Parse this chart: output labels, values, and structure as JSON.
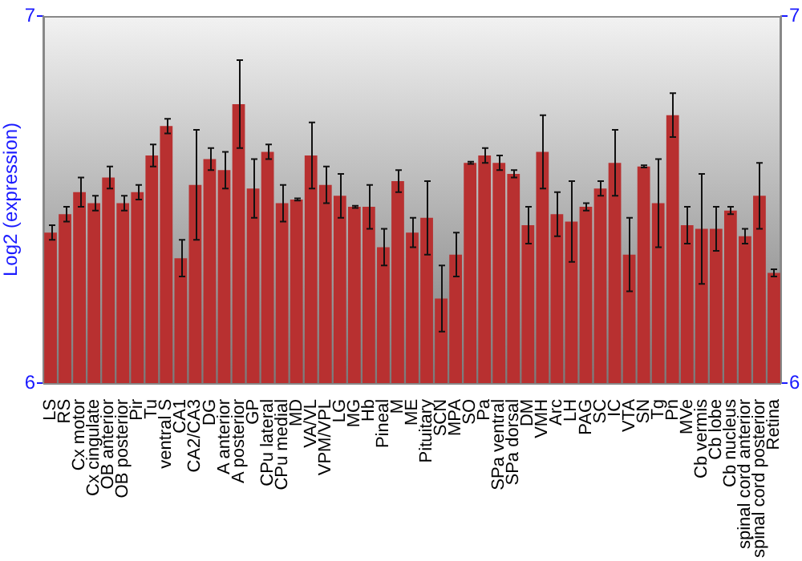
{
  "chart_data": {
    "type": "bar",
    "ylabel": "Log2 (expression)",
    "categories": [
      "LS",
      "RS",
      "Cx motor",
      "Cx cingulate",
      "OB anterior",
      "OB posterior",
      "Pir",
      "Tu",
      "ventral S",
      "CA1",
      "CA2/CA3",
      "DG",
      "A anterior",
      "A posterior",
      "GP",
      "CPu lateral",
      "CPu medial",
      "MD",
      "VA/VL",
      "VPM/VPL",
      "LG",
      "MG",
      "Hb",
      "Pineal",
      "M",
      "ME",
      "Pituitary",
      "SCN",
      "MPA",
      "SO",
      "Pa",
      "SPa ventral",
      "SPa dorsal",
      "DM",
      "VMH",
      "Arc",
      "LH",
      "PAG",
      "SC",
      "IC",
      "VTA",
      "SN",
      "Tg",
      "Pn",
      "MVe",
      "Cb vermis",
      "Cb lobe",
      "Cb nucleus",
      "spinal cord anterior",
      "spinal cord posterior",
      "Retina"
    ],
    "values": [
      6.41,
      6.46,
      6.52,
      6.49,
      6.56,
      6.49,
      6.52,
      6.62,
      6.7,
      6.34,
      6.54,
      6.61,
      6.58,
      6.76,
      6.53,
      6.63,
      6.49,
      6.5,
      6.62,
      6.54,
      6.51,
      6.48,
      6.48,
      6.37,
      6.55,
      6.41,
      6.45,
      6.23,
      6.35,
      6.6,
      6.62,
      6.6,
      6.57,
      6.43,
      6.63,
      6.46,
      6.44,
      6.48,
      6.53,
      6.6,
      6.35,
      6.59,
      6.49,
      6.73,
      6.43,
      6.42,
      6.42,
      6.47,
      6.4,
      6.51,
      6.3
    ],
    "errors": [
      0.02,
      0.02,
      0.04,
      0.02,
      0.03,
      0.02,
      0.02,
      0.03,
      0.02,
      0.05,
      0.15,
      0.03,
      0.05,
      0.12,
      0.08,
      0.02,
      0.05,
      0.003,
      0.09,
      0.05,
      0.06,
      0.003,
      0.06,
      0.05,
      0.03,
      0.04,
      0.1,
      0.09,
      0.06,
      0.003,
      0.02,
      0.02,
      0.01,
      0.05,
      0.1,
      0.06,
      0.11,
      0.01,
      0.02,
      0.09,
      0.1,
      0.003,
      0.12,
      0.06,
      0.05,
      0.15,
      0.06,
      0.01,
      0.02,
      0.09,
      0.01
    ],
    "color": "#b83030",
    "ylim": [
      6,
      7
    ],
    "yticks": [
      6,
      7
    ],
    "y2lim": [
      6,
      7
    ],
    "y2ticks": [
      6,
      7
    ],
    "grid": false,
    "legend": false
  }
}
